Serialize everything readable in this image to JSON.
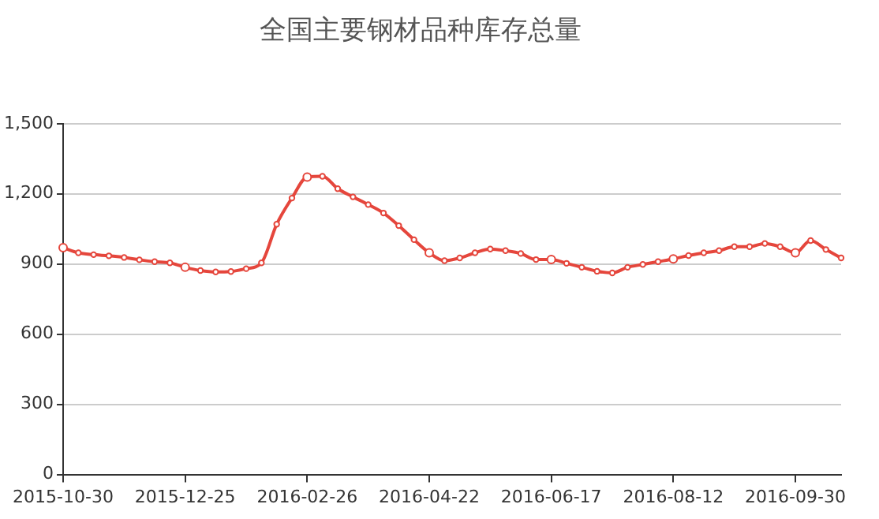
{
  "chart_data": {
    "type": "line",
    "title": "全国主要钢材品种库存总量",
    "categories": [
      "2015-10-30",
      null,
      null,
      null,
      null,
      null,
      null,
      null,
      "2015-12-25",
      null,
      null,
      null,
      null,
      null,
      null,
      null,
      "2016-02-26",
      null,
      null,
      null,
      null,
      null,
      null,
      null,
      "2016-04-22",
      null,
      null,
      null,
      null,
      null,
      null,
      null,
      "2016-06-17",
      null,
      null,
      null,
      null,
      null,
      null,
      null,
      "2016-08-12",
      null,
      null,
      null,
      null,
      null,
      null,
      null,
      "2016-09-30",
      null,
      null,
      null
    ],
    "series": [
      {
        "color": "#e5463c",
        "values": [
          970,
          948,
          940,
          935,
          928,
          918,
          910,
          905,
          886,
          872,
          866,
          868,
          880,
          905,
          1070,
          1182,
          1272,
          1275,
          1222,
          1187,
          1154,
          1118,
          1064,
          1004,
          948,
          914,
          926,
          948,
          964,
          957,
          945,
          919,
          919,
          903,
          886,
          869,
          862,
          886,
          898,
          910,
          922,
          936,
          948,
          957,
          974,
          974,
          988,
          974,
          948,
          1000,
          962,
          926
        ]
      }
    ],
    "ylim": [
      0,
      1500
    ],
    "yticks": [
      0,
      300,
      600,
      900,
      {
        "value": 1200,
        "label": "1,200"
      },
      {
        "value": 1500,
        "label": "1,500"
      }
    ],
    "grid": "y",
    "marker": "circle",
    "line_style": "solid"
  }
}
